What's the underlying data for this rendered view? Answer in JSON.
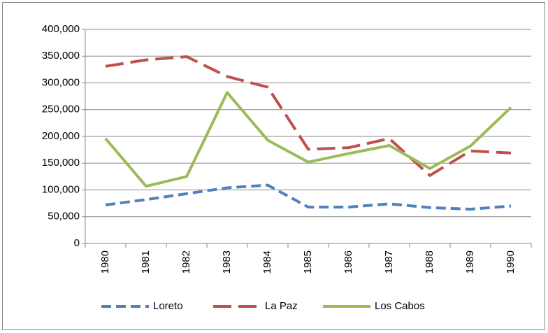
{
  "chart_data": {
    "type": "line",
    "categories": [
      "1980",
      "1981",
      "1982",
      "1983",
      "1984",
      "1985",
      "1986",
      "1987",
      "1988",
      "1989",
      "1990"
    ],
    "series": [
      {
        "name": "Loreto",
        "color": "#4f81bd",
        "dash": "14,7",
        "values": [
          72000,
          82000,
          93000,
          104000,
          109000,
          68000,
          68000,
          74000,
          67000,
          64000,
          70000
        ]
      },
      {
        "name": "La Paz",
        "color": "#c0504d",
        "dash": "26,10",
        "values": [
          331000,
          343000,
          349000,
          312000,
          292000,
          176000,
          179000,
          196000,
          127000,
          173000,
          169000
        ]
      },
      {
        "name": "Los Cabos",
        "color": "#9bbb59",
        "dash": "none",
        "values": [
          196000,
          107000,
          125000,
          282000,
          193000,
          152000,
          168000,
          183000,
          140000,
          182000,
          254000
        ]
      }
    ],
    "ylim": [
      0,
      400000
    ],
    "yticks": [
      0,
      {
        "value": 50000,
        "label": "50,000"
      },
      {
        "value": 100000,
        "label": "100,000"
      },
      {
        "value": 150000,
        "label": "150,000"
      },
      {
        "value": 200000,
        "label": "200,000"
      },
      {
        "value": 250000,
        "label": "250,000"
      },
      {
        "value": 300000,
        "label": "300,000"
      },
      {
        "value": 350000,
        "label": "350,000"
      },
      {
        "value": 400000,
        "label": "400,000"
      }
    ],
    "grid": true,
    "legend": "bottom"
  }
}
